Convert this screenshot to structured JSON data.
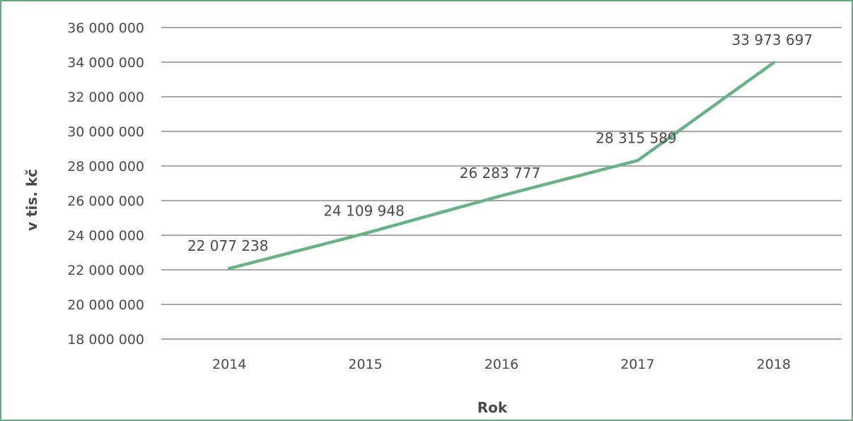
{
  "chart_data": {
    "type": "line",
    "title": "",
    "xlabel": "Rok",
    "ylabel": "v tis. kč",
    "categories": [
      "2014",
      "2015",
      "2016",
      "2017",
      "2018"
    ],
    "series": [
      {
        "values": [
          22077238,
          24109948,
          26283777,
          28315589,
          33973697
        ],
        "labels": [
          "22 077 238",
          "24 109 948",
          "26 283 777",
          "28 315 589",
          "33 973 697"
        ]
      }
    ],
    "ylim": [
      18000000,
      36000000
    ],
    "yticks": [
      18000000,
      20000000,
      22000000,
      24000000,
      26000000,
      28000000,
      30000000,
      32000000,
      34000000,
      36000000
    ],
    "ytick_labels": [
      "18 000 000",
      "20 000 000",
      "22 000 000",
      "24 000 000",
      "26 000 000",
      "28 000 000",
      "30 000 000",
      "32 000 000",
      "34 000 000",
      "36 000 000"
    ],
    "grid": true,
    "legend": "none",
    "colors": {
      "line": "#6ab189",
      "grid": "#8c8c8c",
      "text": "#4a4a4a",
      "border": "#6aa885"
    }
  }
}
